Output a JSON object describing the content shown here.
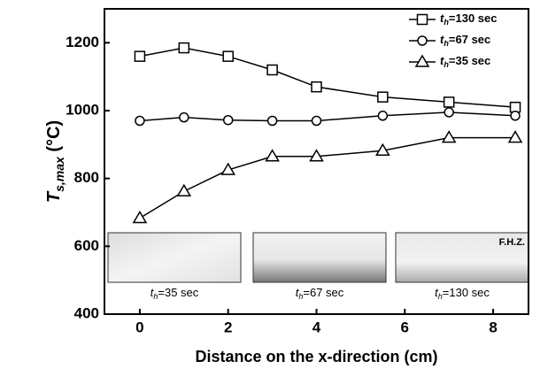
{
  "chart_data": {
    "type": "line",
    "xlabel": "Distance on the x-direction (cm)",
    "ylabel": "Ts,max (°C)",
    "x": [
      0,
      1,
      2,
      3,
      4,
      5.5,
      7,
      8.5
    ],
    "series": [
      {
        "name": "th=130 sec",
        "color": "#000000",
        "marker": "square",
        "values": [
          1160,
          1185,
          1160,
          1120,
          1070,
          1040,
          1025,
          1010
        ]
      },
      {
        "name": "th=67 sec",
        "color": "#000000",
        "marker": "circle",
        "values": [
          970,
          980,
          972,
          970,
          970,
          985,
          995,
          985
        ]
      },
      {
        "name": "th=35 sec",
        "color": "#000000",
        "marker": "triangle",
        "values": [
          683,
          762,
          825,
          865,
          865,
          882,
          920,
          920
        ]
      }
    ],
    "xlim": [
      -0.8,
      8.8
    ],
    "ylim": [
      400,
      1300
    ],
    "xticks": [
      0,
      2,
      4,
      6,
      8
    ],
    "yticks": [
      400,
      600,
      800,
      1000,
      1200
    ],
    "legend": "upper right",
    "insets": [
      {
        "caption": "th=35 sec"
      },
      {
        "caption": "th=67 sec"
      },
      {
        "caption": "th=130 sec"
      }
    ],
    "inset_label": "F.H.Z."
  }
}
